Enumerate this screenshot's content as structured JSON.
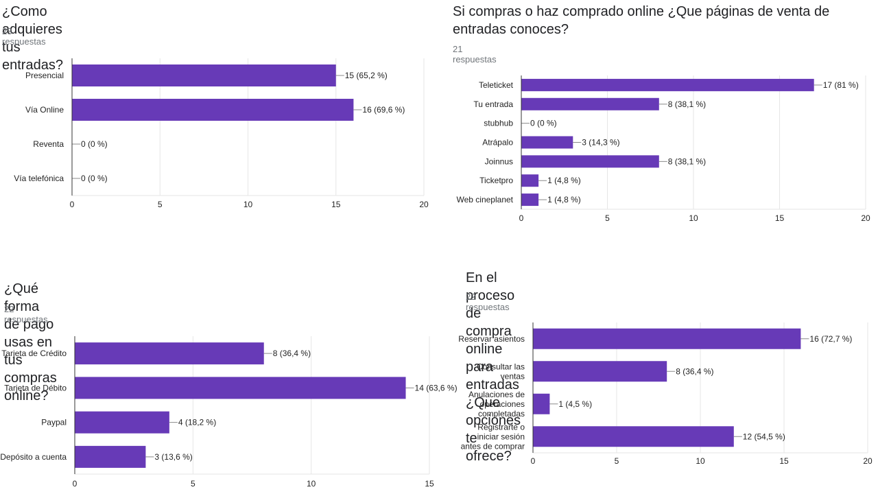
{
  "chart_data": [
    {
      "type": "bar",
      "orientation": "horizontal",
      "title": "¿Como adquieres tus entradas?",
      "responses": "23 respuestas",
      "categories": [
        [
          "Presencial"
        ],
        [
          "Vía Online"
        ],
        [
          "Reventa"
        ],
        [
          "Vía telefónica"
        ]
      ],
      "values": [
        15,
        16,
        0,
        0
      ],
      "labels": [
        "15 (65,2 %)",
        "16 (69,6 %)",
        "0 (0 %)",
        "0 (0 %)"
      ],
      "xlim": [
        0,
        20
      ],
      "xticks": [
        0,
        5,
        10,
        15,
        20
      ],
      "grid": true,
      "color": "#673ab7"
    },
    {
      "type": "bar",
      "orientation": "horizontal",
      "title": "Si compras o haz comprado online ¿Que páginas de venta de entradas conoces?",
      "responses": "21 respuestas",
      "categories": [
        [
          "Teleticket"
        ],
        [
          "Tu entrada"
        ],
        [
          "stubhub"
        ],
        [
          "Atrápalo"
        ],
        [
          "Joinnus"
        ],
        [
          "Ticketpro"
        ],
        [
          "Web cineplanet"
        ]
      ],
      "values": [
        17,
        8,
        0,
        3,
        8,
        1,
        1
      ],
      "labels": [
        "17 (81 %)",
        "8 (38,1 %)",
        "0 (0 %)",
        "3 (14,3 %)",
        "8 (38,1 %)",
        "1 (4,8 %)",
        "1 (4,8 %)"
      ],
      "xlim": [
        0,
        20
      ],
      "xticks": [
        0,
        5,
        10,
        15,
        20
      ],
      "grid": true,
      "color": "#673ab7"
    },
    {
      "type": "bar",
      "orientation": "horizontal",
      "title": "¿Qué forma de pago usas en tus compras online?",
      "responses": "22 respuestas",
      "categories": [
        [
          "Tarjeta de Crédito"
        ],
        [
          "Tarjeta de Débito"
        ],
        [
          "Paypal"
        ],
        [
          "Depósito a cuenta"
        ]
      ],
      "values": [
        8,
        14,
        4,
        3
      ],
      "labels": [
        "8 (36,4 %)",
        "14 (63,6 %)",
        "4 (18,2 %)",
        "3 (13,6 %)"
      ],
      "xlim": [
        0,
        15
      ],
      "xticks": [
        0,
        5,
        10,
        15
      ],
      "grid": true,
      "color": "#673ab7"
    },
    {
      "type": "bar",
      "orientation": "horizontal",
      "title": "En el proceso de compra online para entradas ¿Que opciones te ofrece?",
      "responses": "22 respuestas",
      "categories": [
        [
          "Reservar asientos"
        ],
        [
          "Consultar las",
          "ventas"
        ],
        [
          "Anulaciones de",
          "operaciones",
          "completadas"
        ],
        [
          "Registrarte o",
          "iniciar sesión",
          "antes de comprar"
        ]
      ],
      "values": [
        16,
        8,
        1,
        12
      ],
      "labels": [
        "16 (72,7 %)",
        "8 (36,4 %)",
        "1 (4,5 %)",
        "12 (54,5 %)"
      ],
      "xlim": [
        0,
        20
      ],
      "xticks": [
        0,
        5,
        10,
        15,
        20
      ],
      "grid": true,
      "color": "#673ab7"
    }
  ]
}
